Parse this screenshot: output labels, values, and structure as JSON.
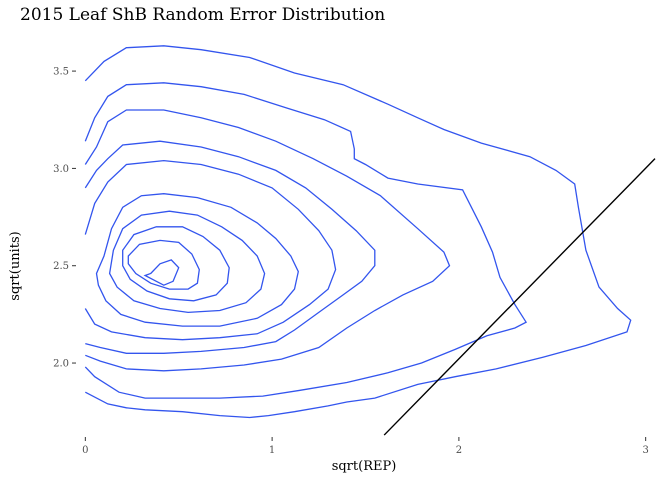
{
  "chart_data": {
    "type": "contour",
    "title": "2015 Leaf ShB Random Error Distribution",
    "xlabel": "sqrt(REP)",
    "ylabel": "sqrt(units)",
    "xlim": [
      -0.05,
      3.05
    ],
    "ylim": [
      1.62,
      3.67
    ],
    "x_ticks": [
      0,
      1,
      2,
      3
    ],
    "x_tick_labels": [
      "0",
      "1",
      "2",
      "3"
    ],
    "y_ticks": [
      2.0,
      2.5,
      3.0,
      3.5
    ],
    "y_tick_labels": [
      "2.0",
      "2.5",
      "3.0",
      "3.5"
    ],
    "grid": false,
    "legend": "none",
    "colors": {
      "contour": "#3355ee",
      "reference_line": "#000000"
    },
    "reference_line": {
      "x": [
        1.6,
        3.05
      ],
      "y": [
        1.63,
        3.05
      ]
    },
    "contours": [
      {
        "closed": false,
        "points": [
          [
            0,
            3.45
          ],
          [
            0.1,
            3.55
          ],
          [
            0.22,
            3.62
          ],
          [
            0.42,
            3.63
          ],
          [
            0.62,
            3.61
          ],
          [
            0.88,
            3.57
          ],
          [
            1.12,
            3.49
          ],
          [
            1.38,
            3.43
          ],
          [
            1.62,
            3.33
          ],
          [
            1.78,
            3.26
          ],
          [
            1.92,
            3.2
          ],
          [
            2.12,
            3.13
          ],
          [
            2.38,
            3.06
          ],
          [
            2.52,
            2.99
          ],
          [
            2.62,
            2.92
          ],
          [
            2.64,
            2.8
          ],
          [
            2.68,
            2.58
          ],
          [
            2.75,
            2.39
          ],
          [
            2.85,
            2.28
          ],
          [
            2.92,
            2.22
          ],
          [
            2.9,
            2.16
          ],
          [
            2.68,
            2.09
          ],
          [
            2.45,
            2.03
          ],
          [
            2.2,
            1.97
          ],
          [
            1.98,
            1.93
          ],
          [
            1.78,
            1.89
          ],
          [
            1.55,
            1.82
          ],
          [
            1.4,
            1.8
          ],
          [
            1.3,
            1.78
          ],
          [
            1.12,
            1.75
          ],
          [
            0.98,
            1.73
          ],
          [
            0.88,
            1.72
          ],
          [
            0.72,
            1.73
          ],
          [
            0.52,
            1.75
          ],
          [
            0.32,
            1.76
          ],
          [
            0.22,
            1.77
          ],
          [
            0.12,
            1.79
          ],
          [
            0,
            1.85
          ]
        ]
      },
      {
        "closed": false,
        "points": [
          [
            0,
            3.14
          ],
          [
            0.05,
            3.26
          ],
          [
            0.12,
            3.37
          ],
          [
            0.22,
            3.43
          ],
          [
            0.42,
            3.44
          ],
          [
            0.62,
            3.42
          ],
          [
            0.85,
            3.38
          ],
          [
            1.08,
            3.31
          ],
          [
            1.28,
            3.25
          ],
          [
            1.42,
            3.19
          ],
          [
            1.44,
            3.1
          ],
          [
            1.44,
            3.05
          ],
          [
            1.5,
            3.02
          ],
          [
            1.62,
            2.95
          ],
          [
            1.78,
            2.92
          ],
          [
            2.02,
            2.89
          ],
          [
            2.12,
            2.7
          ],
          [
            2.18,
            2.57
          ],
          [
            2.22,
            2.44
          ],
          [
            2.3,
            2.3
          ],
          [
            2.36,
            2.21
          ],
          [
            2.3,
            2.18
          ],
          [
            2.15,
            2.14
          ],
          [
            1.98,
            2.07
          ],
          [
            1.8,
            2.0
          ],
          [
            1.62,
            1.95
          ],
          [
            1.4,
            1.9
          ],
          [
            1.15,
            1.86
          ],
          [
            0.95,
            1.83
          ],
          [
            0.72,
            1.82
          ],
          [
            0.52,
            1.82
          ],
          [
            0.32,
            1.82
          ],
          [
            0.18,
            1.85
          ],
          [
            0.05,
            1.93
          ],
          [
            0,
            1.98
          ]
        ]
      },
      {
        "closed": false,
        "points": [
          [
            0,
            3.02
          ],
          [
            0.06,
            3.11
          ],
          [
            0.12,
            3.24
          ],
          [
            0.22,
            3.3
          ],
          [
            0.42,
            3.3
          ],
          [
            0.62,
            3.26
          ],
          [
            0.82,
            3.21
          ],
          [
            1.02,
            3.14
          ],
          [
            1.22,
            3.05
          ],
          [
            1.4,
            2.96
          ],
          [
            1.58,
            2.86
          ],
          [
            1.78,
            2.69
          ],
          [
            1.92,
            2.57
          ],
          [
            1.95,
            2.5
          ],
          [
            1.86,
            2.42
          ],
          [
            1.7,
            2.35
          ],
          [
            1.55,
            2.27
          ],
          [
            1.4,
            2.18
          ],
          [
            1.25,
            2.08
          ],
          [
            1.05,
            2.02
          ],
          [
            0.85,
            1.99
          ],
          [
            0.62,
            1.97
          ],
          [
            0.42,
            1.96
          ],
          [
            0.22,
            1.97
          ],
          [
            0.08,
            2.01
          ],
          [
            0,
            2.04
          ]
        ]
      },
      {
        "closed": false,
        "points": [
          [
            0,
            2.9
          ],
          [
            0.06,
            2.99
          ],
          [
            0.12,
            3.05
          ],
          [
            0.2,
            3.12
          ],
          [
            0.4,
            3.14
          ],
          [
            0.62,
            3.11
          ],
          [
            0.82,
            3.06
          ],
          [
            1.02,
            2.99
          ],
          [
            1.18,
            2.9
          ],
          [
            1.32,
            2.79
          ],
          [
            1.45,
            2.68
          ],
          [
            1.55,
            2.58
          ],
          [
            1.55,
            2.5
          ],
          [
            1.48,
            2.42
          ],
          [
            1.38,
            2.35
          ],
          [
            1.25,
            2.26
          ],
          [
            1.12,
            2.17
          ],
          [
            1.02,
            2.11
          ],
          [
            0.85,
            2.08
          ],
          [
            0.62,
            2.06
          ],
          [
            0.42,
            2.05
          ],
          [
            0.22,
            2.05
          ],
          [
            0.08,
            2.08
          ],
          [
            0,
            2.1
          ]
        ]
      },
      {
        "closed": false,
        "points": [
          [
            0,
            2.66
          ],
          [
            0.05,
            2.82
          ],
          [
            0.12,
            2.93
          ],
          [
            0.22,
            3.02
          ],
          [
            0.42,
            3.04
          ],
          [
            0.62,
            3.02
          ],
          [
            0.82,
            2.97
          ],
          [
            1.0,
            2.9
          ],
          [
            1.14,
            2.79
          ],
          [
            1.25,
            2.68
          ],
          [
            1.32,
            2.58
          ],
          [
            1.34,
            2.48
          ],
          [
            1.3,
            2.38
          ],
          [
            1.2,
            2.3
          ],
          [
            1.06,
            2.21
          ],
          [
            0.92,
            2.15
          ],
          [
            0.72,
            2.13
          ],
          [
            0.52,
            2.12
          ],
          [
            0.32,
            2.13
          ],
          [
            0.14,
            2.16
          ],
          [
            0.05,
            2.2
          ],
          [
            0,
            2.28
          ]
        ]
      },
      {
        "closed": true,
        "points": [
          [
            0.1,
            2.55
          ],
          [
            0.14,
            2.69
          ],
          [
            0.2,
            2.8
          ],
          [
            0.3,
            2.86
          ],
          [
            0.42,
            2.87
          ],
          [
            0.6,
            2.85
          ],
          [
            0.78,
            2.8
          ],
          [
            0.92,
            2.72
          ],
          [
            1.02,
            2.64
          ],
          [
            1.1,
            2.55
          ],
          [
            1.14,
            2.47
          ],
          [
            1.12,
            2.38
          ],
          [
            1.05,
            2.3
          ],
          [
            0.92,
            2.23
          ],
          [
            0.72,
            2.19
          ],
          [
            0.52,
            2.19
          ],
          [
            0.32,
            2.21
          ],
          [
            0.19,
            2.25
          ],
          [
            0.11,
            2.32
          ],
          [
            0.07,
            2.4
          ],
          [
            0.06,
            2.46
          ]
        ]
      },
      {
        "closed": true,
        "points": [
          [
            0.15,
            2.58
          ],
          [
            0.2,
            2.69
          ],
          [
            0.3,
            2.76
          ],
          [
            0.45,
            2.78
          ],
          [
            0.6,
            2.76
          ],
          [
            0.73,
            2.7
          ],
          [
            0.84,
            2.63
          ],
          [
            0.92,
            2.55
          ],
          [
            0.96,
            2.46
          ],
          [
            0.94,
            2.38
          ],
          [
            0.86,
            2.31
          ],
          [
            0.72,
            2.27
          ],
          [
            0.55,
            2.26
          ],
          [
            0.4,
            2.28
          ],
          [
            0.26,
            2.32
          ],
          [
            0.17,
            2.39
          ],
          [
            0.13,
            2.46
          ]
        ]
      },
      {
        "closed": true,
        "points": [
          [
            0.2,
            2.58
          ],
          [
            0.26,
            2.66
          ],
          [
            0.38,
            2.7
          ],
          [
            0.52,
            2.7
          ],
          [
            0.63,
            2.65
          ],
          [
            0.72,
            2.58
          ],
          [
            0.77,
            2.49
          ],
          [
            0.76,
            2.41
          ],
          [
            0.7,
            2.35
          ],
          [
            0.58,
            2.32
          ],
          [
            0.45,
            2.33
          ],
          [
            0.33,
            2.37
          ],
          [
            0.24,
            2.43
          ],
          [
            0.2,
            2.5
          ]
        ]
      },
      {
        "closed": true,
        "points": [
          [
            0.23,
            2.55
          ],
          [
            0.29,
            2.61
          ],
          [
            0.4,
            2.63
          ],
          [
            0.5,
            2.62
          ],
          [
            0.57,
            2.56
          ],
          [
            0.61,
            2.48
          ],
          [
            0.6,
            2.41
          ],
          [
            0.55,
            2.38
          ],
          [
            0.45,
            2.38
          ],
          [
            0.35,
            2.41
          ],
          [
            0.27,
            2.46
          ],
          [
            0.23,
            2.51
          ]
        ]
      },
      {
        "closed": true,
        "points": [
          [
            0.35,
            2.46
          ],
          [
            0.4,
            2.51
          ],
          [
            0.46,
            2.53
          ],
          [
            0.5,
            2.49
          ],
          [
            0.47,
            2.42
          ],
          [
            0.42,
            2.4
          ],
          [
            0.38,
            2.42
          ],
          [
            0.32,
            2.45
          ]
        ]
      }
    ]
  }
}
